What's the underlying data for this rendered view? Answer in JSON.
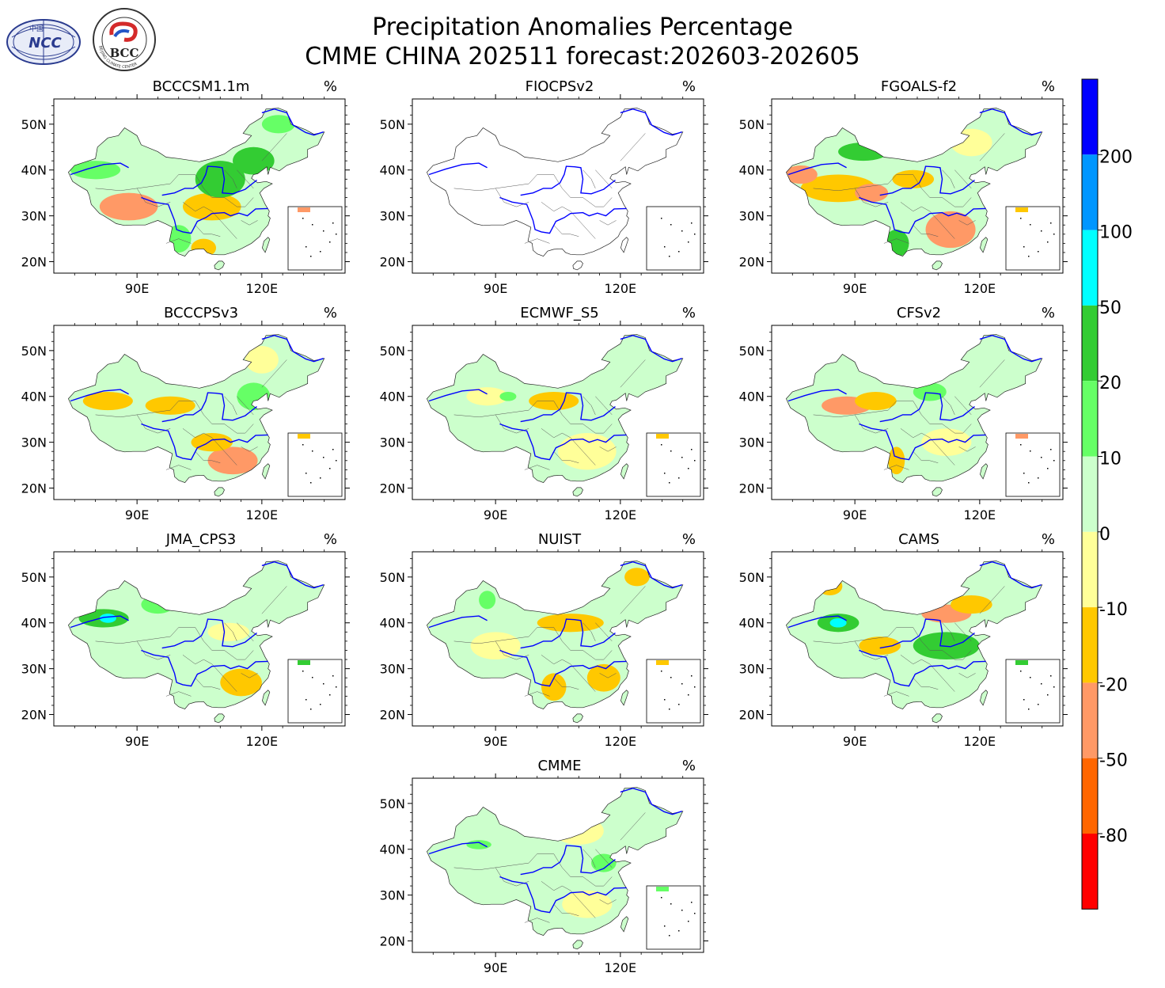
{
  "header": {
    "title_line1": "Precipitation Anomalies Percentage",
    "title_line2": "CMME CHINA 202511 forecast:202603-202605",
    "logo_left_text": "NCC",
    "logo_left_small": "中国",
    "logo_right_text": "BCC",
    "logo_right_ring": "BEIJING CLIMATE CENTER"
  },
  "axes": {
    "lat_labels": [
      "50N",
      "40N",
      "30N",
      "20N"
    ],
    "lon_labels": [
      "90E",
      "120E"
    ],
    "unit": "%"
  },
  "panels": [
    {
      "name": "BCCCSM1.1m",
      "empty": false,
      "blobs": [
        {
          "lon": 88,
          "lat": 32,
          "rx": 7,
          "ry": 3,
          "c": "#ff9966"
        },
        {
          "lon": 108,
          "lat": 32,
          "rx": 7,
          "ry": 3,
          "c": "#ffc800"
        },
        {
          "lon": 110,
          "lat": 38,
          "rx": 6,
          "ry": 4,
          "c": "#33cc33"
        },
        {
          "lon": 118,
          "lat": 42,
          "rx": 5,
          "ry": 3,
          "c": "#33cc33"
        },
        {
          "lon": 124,
          "lat": 50,
          "rx": 4,
          "ry": 2,
          "c": "#66ff66"
        },
        {
          "lon": 80,
          "lat": 40,
          "rx": 6,
          "ry": 2,
          "c": "#66ff66"
        },
        {
          "lon": 100,
          "lat": 25,
          "rx": 3,
          "ry": 3,
          "c": "#66ff66"
        },
        {
          "lon": 106,
          "lat": 23,
          "rx": 3,
          "ry": 2,
          "c": "#ffc800"
        }
      ]
    },
    {
      "name": "FIOCPSv2",
      "empty": true,
      "blobs": []
    },
    {
      "name": "FGOALS-f2",
      "empty": false,
      "blobs": [
        {
          "lon": 86,
          "lat": 36,
          "rx": 9,
          "ry": 3,
          "c": "#ffc800"
        },
        {
          "lon": 77,
          "lat": 39,
          "rx": 4,
          "ry": 2,
          "c": "#ff9966"
        },
        {
          "lon": 94,
          "lat": 35,
          "rx": 4,
          "ry": 2,
          "c": "#ff9966"
        },
        {
          "lon": 113,
          "lat": 27,
          "rx": 6,
          "ry": 4,
          "c": "#ff9966"
        },
        {
          "lon": 92,
          "lat": 44,
          "rx": 6,
          "ry": 2,
          "c": "#33cc33"
        },
        {
          "lon": 100,
          "lat": 24,
          "rx": 3,
          "ry": 3,
          "c": "#33cc33"
        },
        {
          "lon": 104,
          "lat": 38,
          "rx": 5,
          "ry": 2,
          "c": "#ffc800"
        },
        {
          "lon": 118,
          "lat": 46,
          "rx": 5,
          "ry": 3,
          "c": "#ffff99"
        }
      ]
    },
    {
      "name": "BCCCPSv3",
      "empty": false,
      "blobs": [
        {
          "lon": 83,
          "lat": 39,
          "rx": 6,
          "ry": 2,
          "c": "#ffc800"
        },
        {
          "lon": 98,
          "lat": 38,
          "rx": 6,
          "ry": 2,
          "c": "#ffc800"
        },
        {
          "lon": 113,
          "lat": 26,
          "rx": 6,
          "ry": 3,
          "c": "#ff9966"
        },
        {
          "lon": 108,
          "lat": 30,
          "rx": 5,
          "ry": 2,
          "c": "#ffc800"
        },
        {
          "lon": 118,
          "lat": 40,
          "rx": 4,
          "ry": 3,
          "c": "#66ff66"
        },
        {
          "lon": 120,
          "lat": 48,
          "rx": 4,
          "ry": 3,
          "c": "#ffff99"
        }
      ]
    },
    {
      "name": "ECMWF_S5",
      "empty": false,
      "blobs": [
        {
          "lon": 104,
          "lat": 39,
          "rx": 6,
          "ry": 2,
          "c": "#ffc800"
        },
        {
          "lon": 88,
          "lat": 40,
          "rx": 5,
          "ry": 2,
          "c": "#ffff99"
        },
        {
          "lon": 112,
          "lat": 28,
          "rx": 7,
          "ry": 4,
          "c": "#ffff99"
        },
        {
          "lon": 93,
          "lat": 40,
          "rx": 2,
          "ry": 1,
          "c": "#66ff66"
        }
      ]
    },
    {
      "name": "CFSv2",
      "empty": false,
      "blobs": [
        {
          "lon": 88,
          "lat": 38,
          "rx": 6,
          "ry": 2,
          "c": "#ff9966"
        },
        {
          "lon": 100,
          "lat": 26,
          "rx": 2,
          "ry": 3,
          "c": "#ffc800"
        },
        {
          "lon": 95,
          "lat": 39,
          "rx": 5,
          "ry": 2,
          "c": "#ffc800"
        },
        {
          "lon": 108,
          "lat": 41,
          "rx": 4,
          "ry": 2,
          "c": "#66ff66"
        },
        {
          "lon": 112,
          "lat": 30,
          "rx": 6,
          "ry": 3,
          "c": "#ffff99"
        }
      ]
    },
    {
      "name": "JMA_CPS3",
      "empty": false,
      "blobs": [
        {
          "lon": 82,
          "lat": 41,
          "rx": 6,
          "ry": 2,
          "c": "#33cc33"
        },
        {
          "lon": 83,
          "lat": 41,
          "rx": 2,
          "ry": 1,
          "c": "#00ffff"
        },
        {
          "lon": 115,
          "lat": 27,
          "rx": 5,
          "ry": 3,
          "c": "#ffc800"
        },
        {
          "lon": 95,
          "lat": 44,
          "rx": 4,
          "ry": 2,
          "c": "#66ff66"
        },
        {
          "lon": 112,
          "lat": 38,
          "rx": 5,
          "ry": 2,
          "c": "#ffff99"
        }
      ]
    },
    {
      "name": "NUIST",
      "empty": false,
      "blobs": [
        {
          "lon": 108,
          "lat": 40,
          "rx": 8,
          "ry": 2,
          "c": "#ffc800"
        },
        {
          "lon": 124,
          "lat": 50,
          "rx": 3,
          "ry": 2,
          "c": "#ffc800"
        },
        {
          "lon": 104,
          "lat": 26,
          "rx": 3,
          "ry": 3,
          "c": "#ffc800"
        },
        {
          "lon": 116,
          "lat": 28,
          "rx": 4,
          "ry": 3,
          "c": "#ffc800"
        },
        {
          "lon": 88,
          "lat": 45,
          "rx": 2,
          "ry": 2,
          "c": "#66ff66"
        },
        {
          "lon": 90,
          "lat": 35,
          "rx": 6,
          "ry": 3,
          "c": "#ffff99"
        }
      ]
    },
    {
      "name": "CAMS",
      "empty": false,
      "blobs": [
        {
          "lon": 86,
          "lat": 40,
          "rx": 5,
          "ry": 2,
          "c": "#33cc33"
        },
        {
          "lon": 86,
          "lat": 40,
          "rx": 2,
          "ry": 1,
          "c": "#00ffff"
        },
        {
          "lon": 112,
          "lat": 35,
          "rx": 8,
          "ry": 3,
          "c": "#33cc33"
        },
        {
          "lon": 112,
          "lat": 42,
          "rx": 6,
          "ry": 2,
          "c": "#ff9966"
        },
        {
          "lon": 118,
          "lat": 44,
          "rx": 5,
          "ry": 2,
          "c": "#ffc800"
        },
        {
          "lon": 96,
          "lat": 35,
          "rx": 5,
          "ry": 2,
          "c": "#ffc800"
        },
        {
          "lon": 84,
          "lat": 48,
          "rx": 3,
          "ry": 2,
          "c": "#ffc800"
        }
      ]
    },
    {
      "name": "CMME",
      "empty": false,
      "blobs": [
        {
          "lon": 86,
          "lat": 41,
          "rx": 3,
          "ry": 1,
          "c": "#66ff66"
        },
        {
          "lon": 116,
          "lat": 37,
          "rx": 3,
          "ry": 2,
          "c": "#66ff66"
        },
        {
          "lon": 114,
          "lat": 27,
          "rx": 3,
          "ry": 1,
          "c": "#ffc800"
        },
        {
          "lon": 110,
          "lat": 44,
          "rx": 6,
          "ry": 3,
          "c": "#ffff99"
        },
        {
          "lon": 112,
          "lat": 28,
          "rx": 6,
          "ry": 3,
          "c": "#ffff99"
        }
      ]
    }
  ],
  "colorbar": {
    "labels": [
      "200",
      "100",
      "50",
      "20",
      "10",
      "0",
      "-10",
      "-20",
      "-50",
      "-80"
    ],
    "colors": [
      "#0000ff",
      "#0096ff",
      "#00ffff",
      "#33cc33",
      "#66ff66",
      "#ccffcc",
      "#ffff99",
      "#ffc800",
      "#ff9966",
      "#ff6600",
      "#ff0000"
    ]
  },
  "palette": {
    "base": "#ccffcc",
    "river": "#0000ff",
    "border": "#000000"
  }
}
